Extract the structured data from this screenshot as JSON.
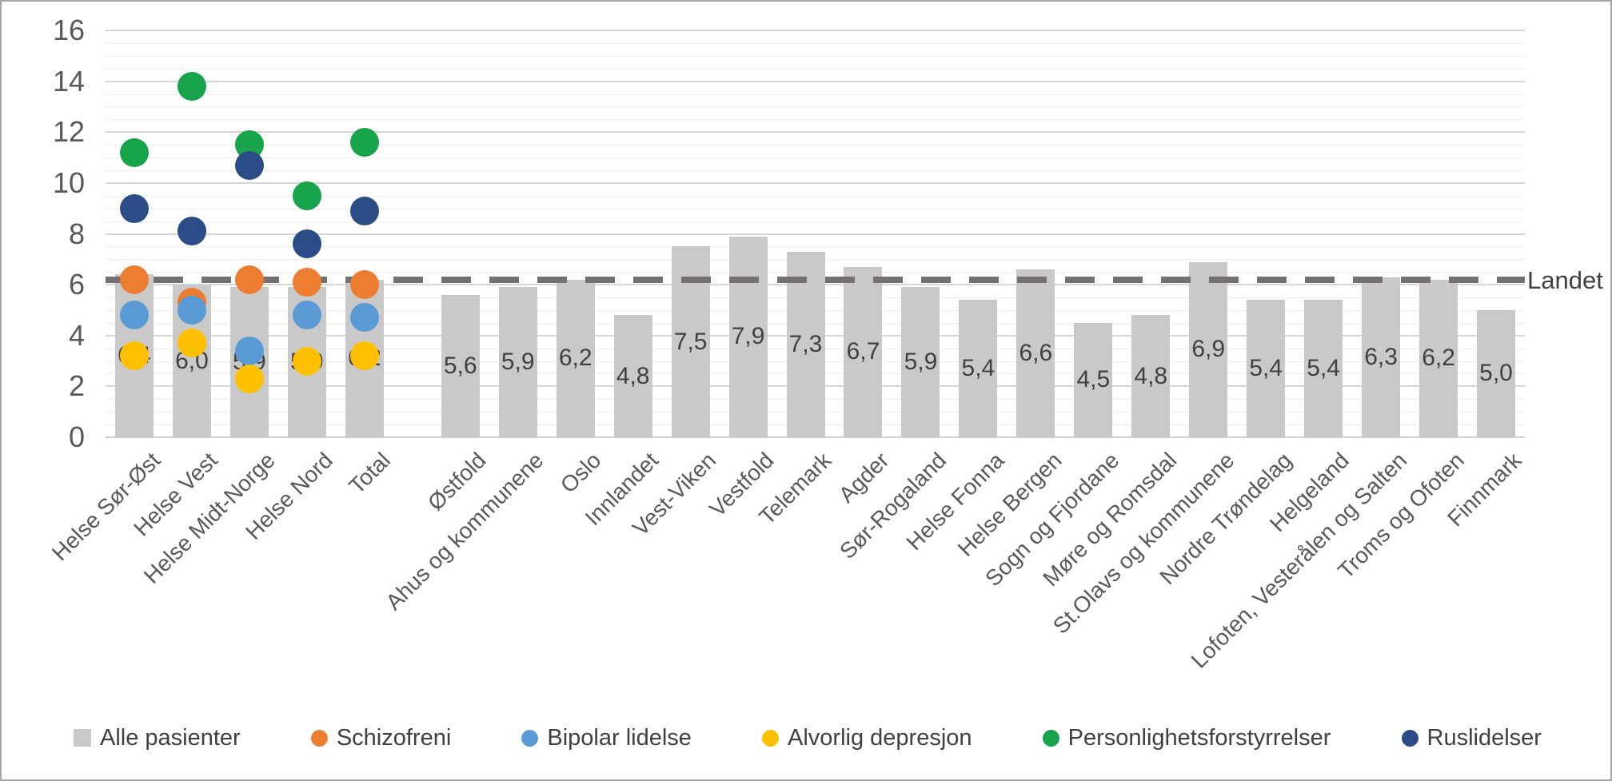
{
  "chart_data": {
    "type": "bar",
    "subtype": "bar-with-scatter-overlay",
    "title": "",
    "xlabel": "",
    "ylabel": "",
    "categories": [
      "Helse Sør-Øst",
      "Helse Vest",
      "Helse Midt-Norge",
      "Helse Nord",
      "Total",
      "Østfold",
      "Ahus og kommunene",
      "Oslo",
      "Innlandet",
      "Vest-Viken",
      "Vestfold",
      "Telemark",
      "Agder",
      "Sør-Rogaland",
      "Helse Fonna",
      "Helse Bergen",
      "Sogn og Fjordane",
      "Møre og Romsdal",
      "St.Olavs og kommunene",
      "Nordre Trøndelag",
      "Helgeland",
      "Lofoten, Vesterålen og Salten",
      "Troms og Ofoten",
      "Finnmark"
    ],
    "bar_series": {
      "name": "Alle pasienter",
      "color": "#c9c9c9",
      "values": [
        6.4,
        6.0,
        5.9,
        5.9,
        6.2,
        5.6,
        5.9,
        6.2,
        4.8,
        7.5,
        7.9,
        7.3,
        6.7,
        5.9,
        5.4,
        6.6,
        4.5,
        4.8,
        6.9,
        5.4,
        5.4,
        6.3,
        6.2,
        5.0
      ],
      "labels": [
        "6,4",
        "6,0",
        "5,9",
        "5,9",
        "6,2",
        "5,6",
        "5,9",
        "6,2",
        "4,8",
        "7,5",
        "7,9",
        "7,3",
        "6,7",
        "5,9",
        "5,4",
        "6,6",
        "4,5",
        "4,8",
        "6,9",
        "5,4",
        "5,4",
        "6,3",
        "6,2",
        "5,0"
      ]
    },
    "scatter_series": [
      {
        "name": "Schizofreni",
        "color": "#ed7d31",
        "values": [
          6.2,
          5.3,
          6.2,
          6.1,
          6.0
        ]
      },
      {
        "name": "Bipolar lidelse",
        "color": "#5b9bd5",
        "values": [
          4.8,
          5.0,
          3.4,
          4.8,
          4.7
        ]
      },
      {
        "name": "Alvorlig depresjon",
        "color": "#ffc000",
        "values": [
          3.2,
          3.7,
          2.3,
          3.0,
          3.2
        ]
      },
      {
        "name": "Personlighetsforstyrrelser",
        "color": "#17a44b",
        "values": [
          11.2,
          13.8,
          11.5,
          9.5,
          11.6
        ]
      },
      {
        "name": "Ruslidelser",
        "color": "#2c4c87",
        "values": [
          9.0,
          8.1,
          10.7,
          7.6,
          8.9
        ]
      }
    ],
    "reference_line": {
      "label": "Landet",
      "value": 6.2,
      "color": "#767171",
      "style": "dashed"
    },
    "y_axis": {
      "min": 0,
      "max": 16,
      "major_step": 2,
      "minor_step": 0.5,
      "tick_labels": [
        "0",
        "2",
        "4",
        "6",
        "8",
        "10",
        "12",
        "14",
        "16"
      ]
    },
    "legend": {
      "position": "bottom",
      "entries": [
        {
          "label": "Alle pasienter",
          "marker": "square",
          "color": "#c9c9c9"
        },
        {
          "label": "Schizofreni",
          "marker": "circle",
          "color": "#ed7d31"
        },
        {
          "label": "Bipolar lidelse",
          "marker": "circle",
          "color": "#5b9bd5"
        },
        {
          "label": "Alvorlig depresjon",
          "marker": "circle",
          "color": "#ffc000"
        },
        {
          "label": "Personlighetsforstyrrelser",
          "marker": "circle",
          "color": "#17a44b"
        },
        {
          "label": "Ruslidelser",
          "marker": "circle",
          "color": "#2c4c87"
        }
      ]
    },
    "layout": {
      "gap_after_category_index": 4,
      "grid": "horizontal-major-and-minor",
      "data_label_position": "center-of-bar"
    }
  }
}
